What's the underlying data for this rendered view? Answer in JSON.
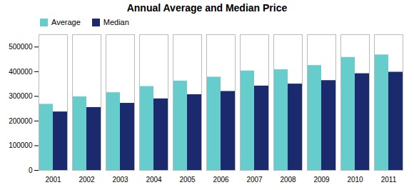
{
  "chart_data": {
    "type": "bar",
    "title": "Annual Average and Median Price",
    "categories": [
      "2001",
      "2002",
      "2003",
      "2004",
      "2005",
      "2006",
      "2007",
      "2008",
      "2009",
      "2010",
      "2011"
    ],
    "series": [
      {
        "name": "Average",
        "color": "#66cccc",
        "values": [
          268000,
          298000,
          315000,
          340000,
          362000,
          378000,
          403000,
          408000,
          425000,
          458000,
          468000
        ]
      },
      {
        "name": "Median",
        "color": "#1a2a6c",
        "values": [
          237000,
          255000,
          272000,
          290000,
          307000,
          320000,
          342000,
          350000,
          364000,
          392000,
          398000
        ]
      }
    ],
    "ylim": [
      0,
      550000
    ],
    "yticks": [
      0,
      100000,
      200000,
      300000,
      400000,
      500000
    ],
    "legend": "upper left",
    "grid": false
  }
}
